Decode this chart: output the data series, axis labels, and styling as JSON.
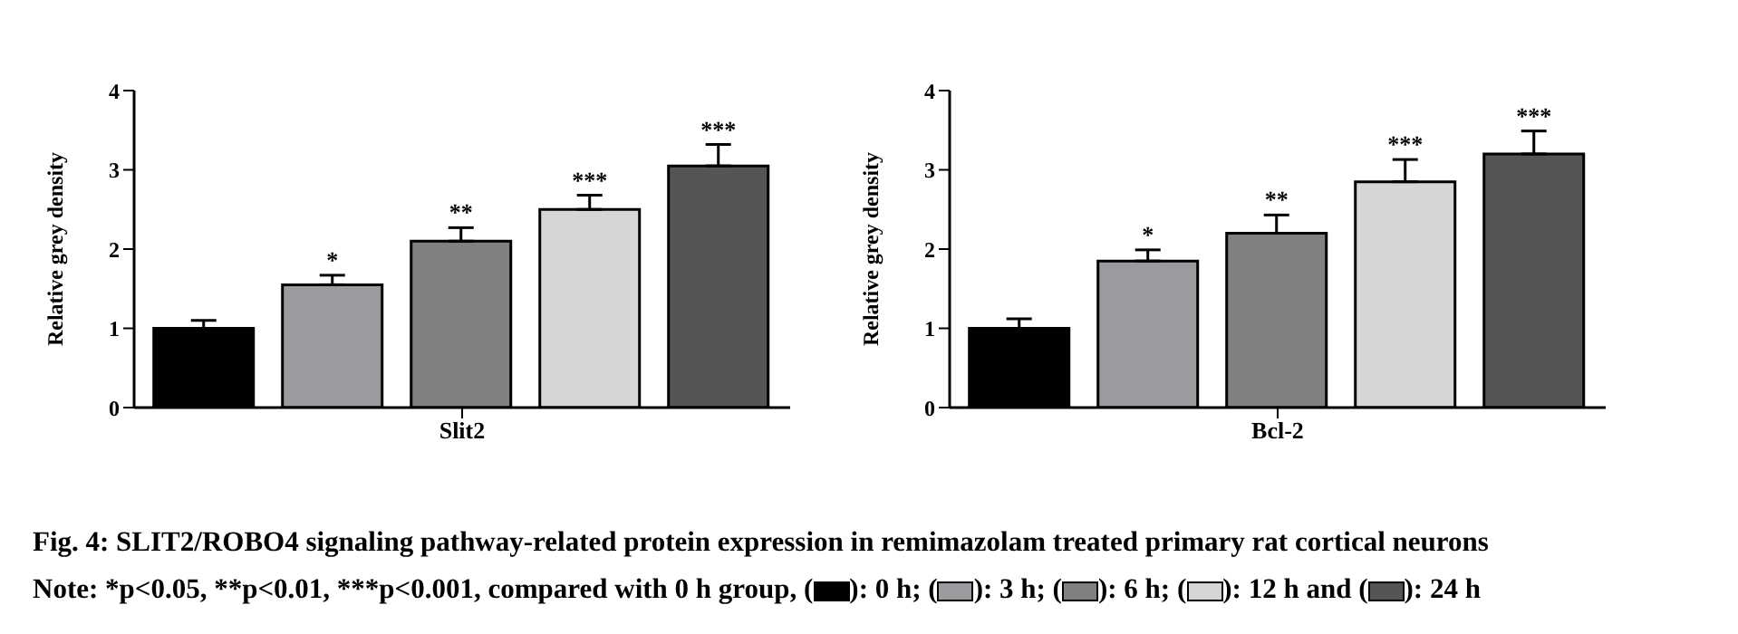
{
  "chart_data": [
    {
      "type": "bar",
      "title": "Fig. 4: SLIT2/ROBO4 signaling pathway-related protein expression in remimazolam treated primary rat cortical neurons",
      "annotations": [
        "Note: *p<0.05, **p<0.01, ***p<0.001, compared with 0 h group, (",
        "): 0 h; (",
        "): 3 h; (",
        "): 6 h; (",
        "): 12 h and (",
        "): 24 h"
      ],
      "ylabel": "Relative grey density",
      "categories": [
        "Slit2"
      ],
      "ylim": [
        0,
        4
      ],
      "yticks": [
        0,
        1,
        2,
        3,
        4
      ],
      "series": [
        {
          "color": "#000000",
          "values": [
            1.0
          ],
          "errors": [
            0.1
          ]
        },
        {
          "color": "#9b9b9f",
          "values": [
            1.55
          ],
          "errors": [
            [
              1.55,
              1.67
            ]
          ],
          "value_labels": [
            "*"
          ]
        },
        {
          "color": "#808080",
          "values": [
            2.1
          ],
          "errors": [
            [
              2.1,
              2.27
            ]
          ],
          "value_labels": [
            "**"
          ]
        },
        {
          "color": "#d6d6d6",
          "values": [
            2.5
          ],
          "errors": [
            [
              2.5,
              2.68
            ]
          ],
          "value_labels": [
            "***"
          ]
        },
        {
          "color": "#555555",
          "values": [
            3.05
          ],
          "errors": [
            [
              3.05,
              3.32
            ]
          ],
          "value_labels": [
            "***"
          ]
        }
      ]
    },
    {
      "type": "bar",
      "ylabel": "Relative grey density",
      "categories": [
        "Bcl-2"
      ],
      "ylim": [
        0,
        4
      ],
      "yticks": [
        0,
        1,
        2,
        3,
        4
      ],
      "series": [
        {
          "color": "#000000",
          "values": [
            1.0
          ],
          "errors": [
            0.12
          ]
        },
        {
          "color": "#9b9b9f",
          "values": [
            1.85
          ],
          "errors": [
            [
              1.85,
              1.99
            ]
          ],
          "value_labels": [
            "*"
          ]
        },
        {
          "color": "#808080",
          "values": [
            2.2
          ],
          "errors": [
            [
              2.2,
              2.43
            ]
          ],
          "value_labels": [
            "**"
          ]
        },
        {
          "color": "#d6d6d6",
          "values": [
            2.85
          ],
          "errors": [
            [
              2.85,
              3.13
            ]
          ],
          "value_labels": [
            "***"
          ]
        },
        {
          "color": "#555555",
          "values": [
            3.2
          ],
          "errors": [
            [
              3.2,
              3.49
            ]
          ],
          "value_labels": [
            "***"
          ]
        }
      ]
    }
  ]
}
